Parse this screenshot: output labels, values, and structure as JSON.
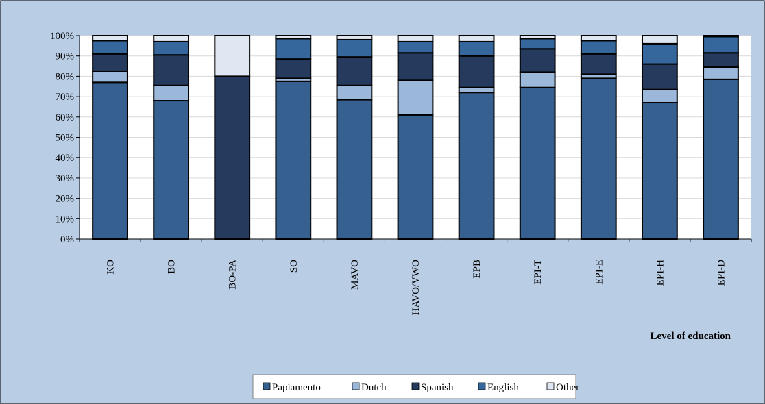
{
  "chart_data": {
    "type": "bar",
    "stacked": true,
    "normalized": true,
    "xlabel": "Level of education",
    "ylabel": "",
    "ylim": [
      0,
      100
    ],
    "y_ticks": [
      "0%",
      "10%",
      "20%",
      "30%",
      "40%",
      "50%",
      "60%",
      "70%",
      "80%",
      "90%",
      "100%"
    ],
    "grid": true,
    "legend_position": "bottom",
    "categories": [
      "KO",
      "BO",
      "BO-PA",
      "SO",
      "MAVO",
      "HAVO/VWO",
      "EPB",
      "EPI-T",
      "EPI-E",
      "EPI-H",
      "EPI-D"
    ],
    "series": [
      {
        "name": "Papiamento",
        "color": "#35608f",
        "values": [
          77,
          68,
          0,
          77.5,
          68.5,
          61,
          72,
          74.5,
          79,
          67,
          78.5
        ]
      },
      {
        "name": "Dutch",
        "color": "#9bb8db",
        "values": [
          5.5,
          7.5,
          0,
          1.5,
          7,
          17,
          2.5,
          7.5,
          2,
          6.5,
          6
        ]
      },
      {
        "name": "Spanish",
        "color": "#253a5c",
        "values": [
          8.5,
          15,
          80,
          9.5,
          14,
          13.5,
          15.5,
          11.5,
          10,
          12.5,
          7
        ]
      },
      {
        "name": "English",
        "color": "#36679c",
        "values": [
          6.5,
          6.5,
          0,
          10,
          8.5,
          5.5,
          7,
          5,
          6.5,
          10,
          8
        ]
      },
      {
        "name": "Other",
        "color": "#dfe7f2",
        "values": [
          2.5,
          3,
          20,
          1.5,
          2,
          3,
          3,
          1.5,
          2.5,
          4,
          0.5
        ]
      }
    ]
  },
  "colors": {
    "frame_background": "#b9cde5",
    "plot_background": "#ffffff",
    "gridline": "#d9d9d9",
    "bar_outline": "#000000"
  }
}
